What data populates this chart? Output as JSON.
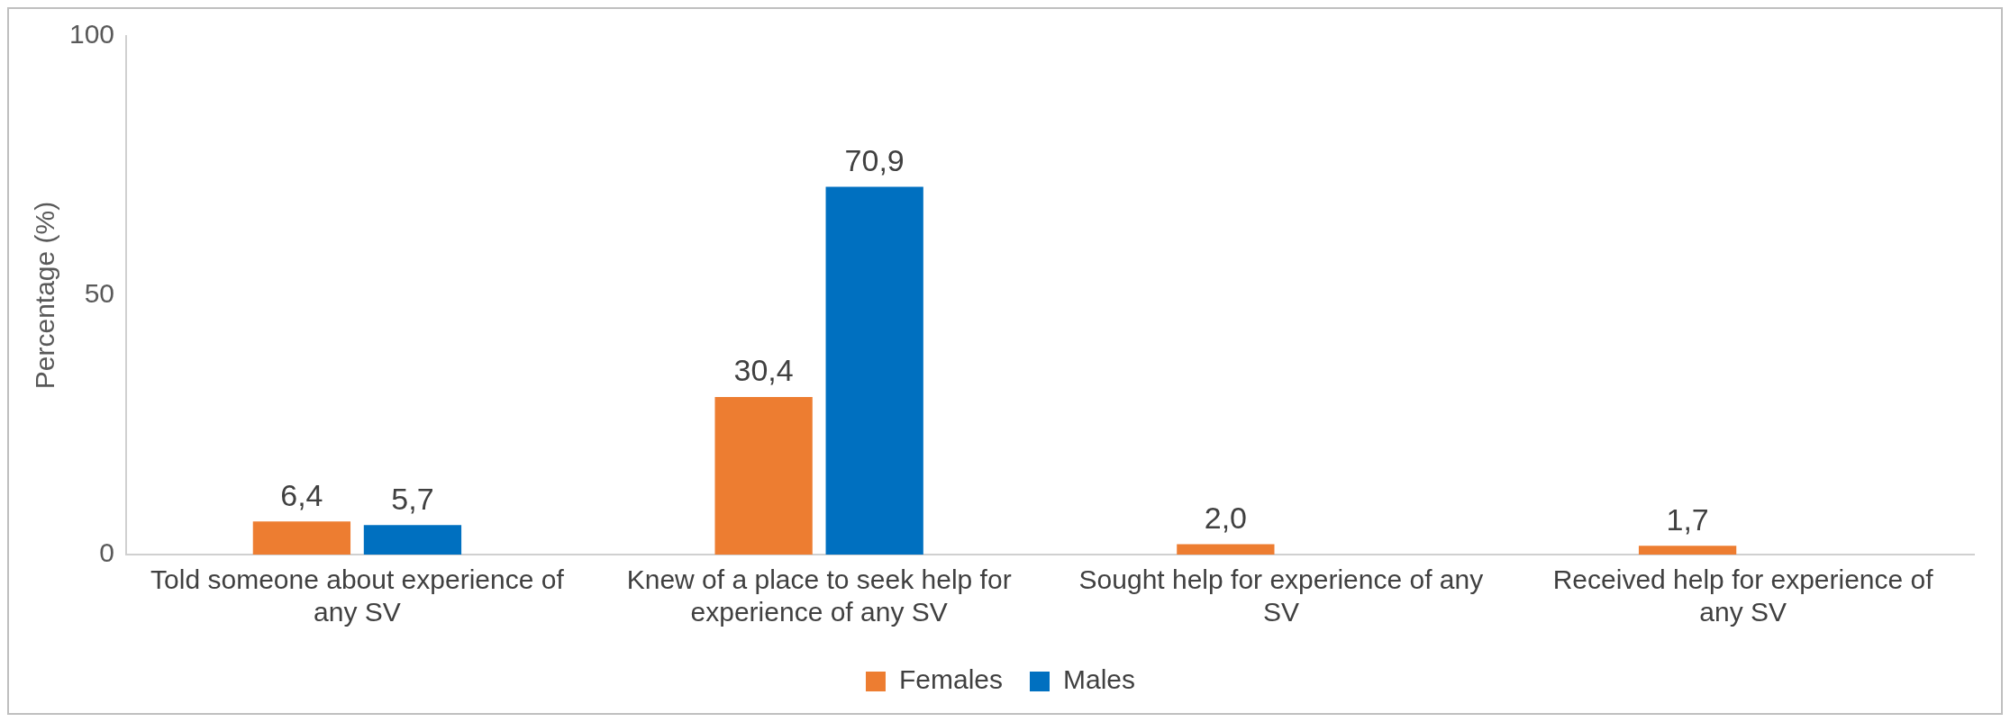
{
  "chart_data": {
    "type": "bar",
    "ylabel": "Percentage (%)",
    "categories": [
      "Told someone about experience of any SV",
      "Knew of a place to seek help for experience of any SV",
      "Sought help for experience of any SV",
      "Received help for experience of any SV"
    ],
    "series": [
      {
        "name": "Females",
        "color": "#ed7d31",
        "values": [
          6.4,
          30.4,
          2.0,
          1.7
        ],
        "value_labels": [
          "6,4",
          "30,4",
          "2,0",
          "1,7"
        ]
      },
      {
        "name": "Males",
        "color": "#0070c0",
        "values": [
          5.7,
          70.9,
          null,
          null
        ],
        "value_labels": [
          "5,7",
          "70,9",
          null,
          null
        ]
      }
    ],
    "ylim": [
      0,
      100
    ],
    "yticks": [
      0,
      50,
      100
    ],
    "grid": false,
    "legend": "bottom"
  }
}
